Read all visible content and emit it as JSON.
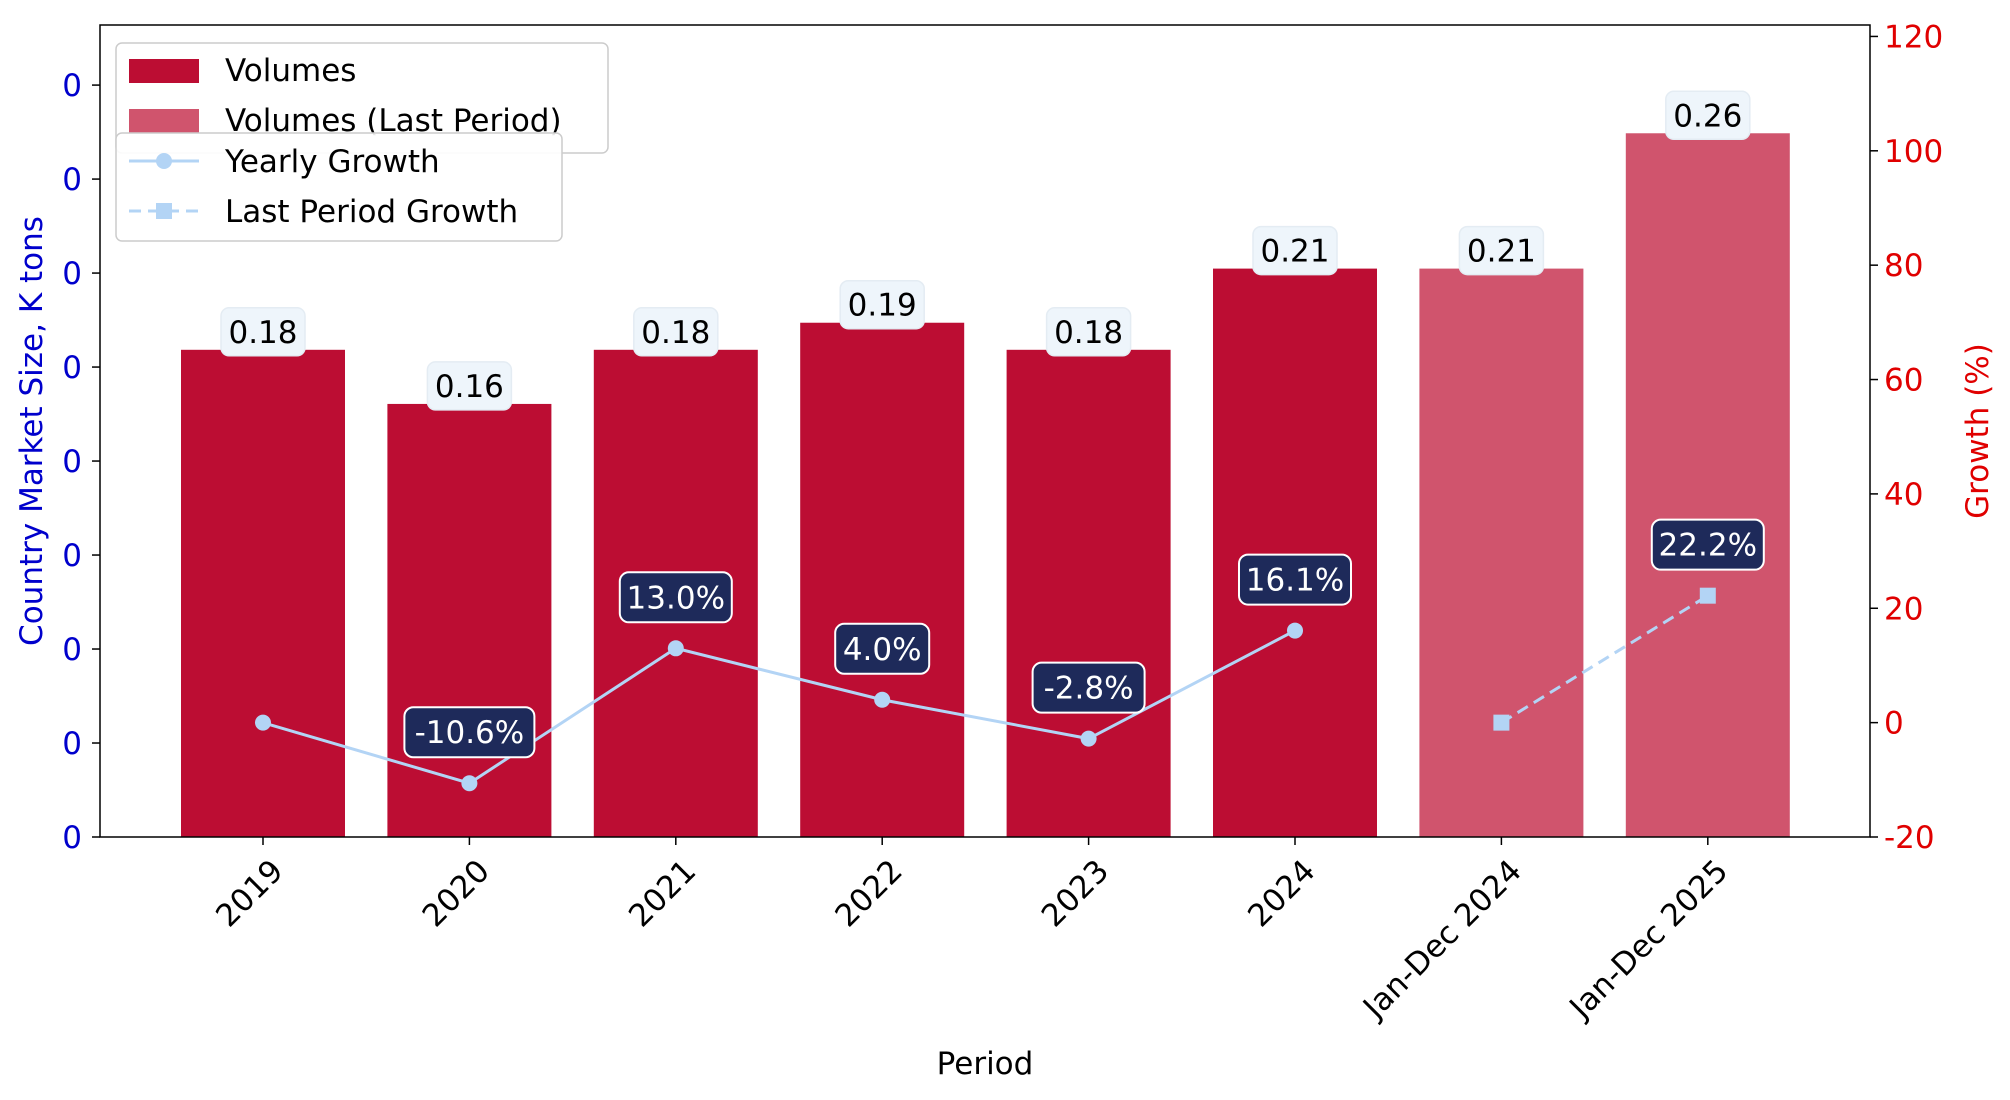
{
  "chart_data": {
    "type": "bar",
    "xlabel": "Period",
    "ylabel_left": "Country Market Size, K tons",
    "ylabel_right": "Growth (%)",
    "categories": [
      "2019",
      "2020",
      "2021",
      "2022",
      "2023",
      "2024",
      "Jan-Dec 2024",
      "Jan-Dec 2025"
    ],
    "left_tick_labels": [
      "0",
      "0",
      "0",
      "0",
      "0",
      "0",
      "0",
      "0",
      "0"
    ],
    "left_ylim": [
      0,
      0.3
    ],
    "right_ylim": [
      -20,
      122
    ],
    "right_ticks": [
      -20,
      0,
      20,
      40,
      60,
      80,
      100,
      120
    ],
    "grid": false,
    "series": [
      {
        "name": "Volumes",
        "kind": "bar",
        "color": "#bc0d33",
        "values": [
          0.18,
          0.16,
          0.18,
          0.19,
          0.18,
          0.21,
          null,
          null
        ],
        "labels": [
          "0.18",
          "0.16",
          "0.18",
          "0.19",
          "0.18",
          "0.21",
          null,
          null
        ]
      },
      {
        "name": "Volumes (Last Period)",
        "kind": "bar",
        "color": "#d0546d",
        "values": [
          null,
          null,
          null,
          null,
          null,
          null,
          0.21,
          0.26
        ],
        "labels": [
          null,
          null,
          null,
          null,
          null,
          null,
          "0.21",
          "0.26"
        ]
      },
      {
        "name": "Yearly Growth",
        "kind": "line",
        "style": "solid",
        "marker": "circle",
        "color": "#b3d4f5",
        "values": [
          0.0,
          -10.6,
          13.0,
          4.0,
          -2.8,
          16.1,
          null,
          null
        ],
        "labels": [
          null,
          "-10.6%",
          "13.0%",
          "4.0%",
          "-2.8%",
          "16.1%",
          null,
          null
        ]
      },
      {
        "name": "Last Period Growth",
        "kind": "line",
        "style": "dashed",
        "marker": "square",
        "color": "#b3d4f5",
        "values": [
          null,
          null,
          null,
          null,
          null,
          null,
          0.0,
          22.2
        ],
        "labels": [
          null,
          null,
          null,
          null,
          null,
          null,
          null,
          "22.2%"
        ]
      }
    ],
    "colors": {
      "left_axis": "#0000cc",
      "right_axis": "#e00000",
      "growth_label_bg": "#1e2a5a",
      "value_label_bg": "#eef5fb"
    },
    "legend_placement": "top-left"
  }
}
